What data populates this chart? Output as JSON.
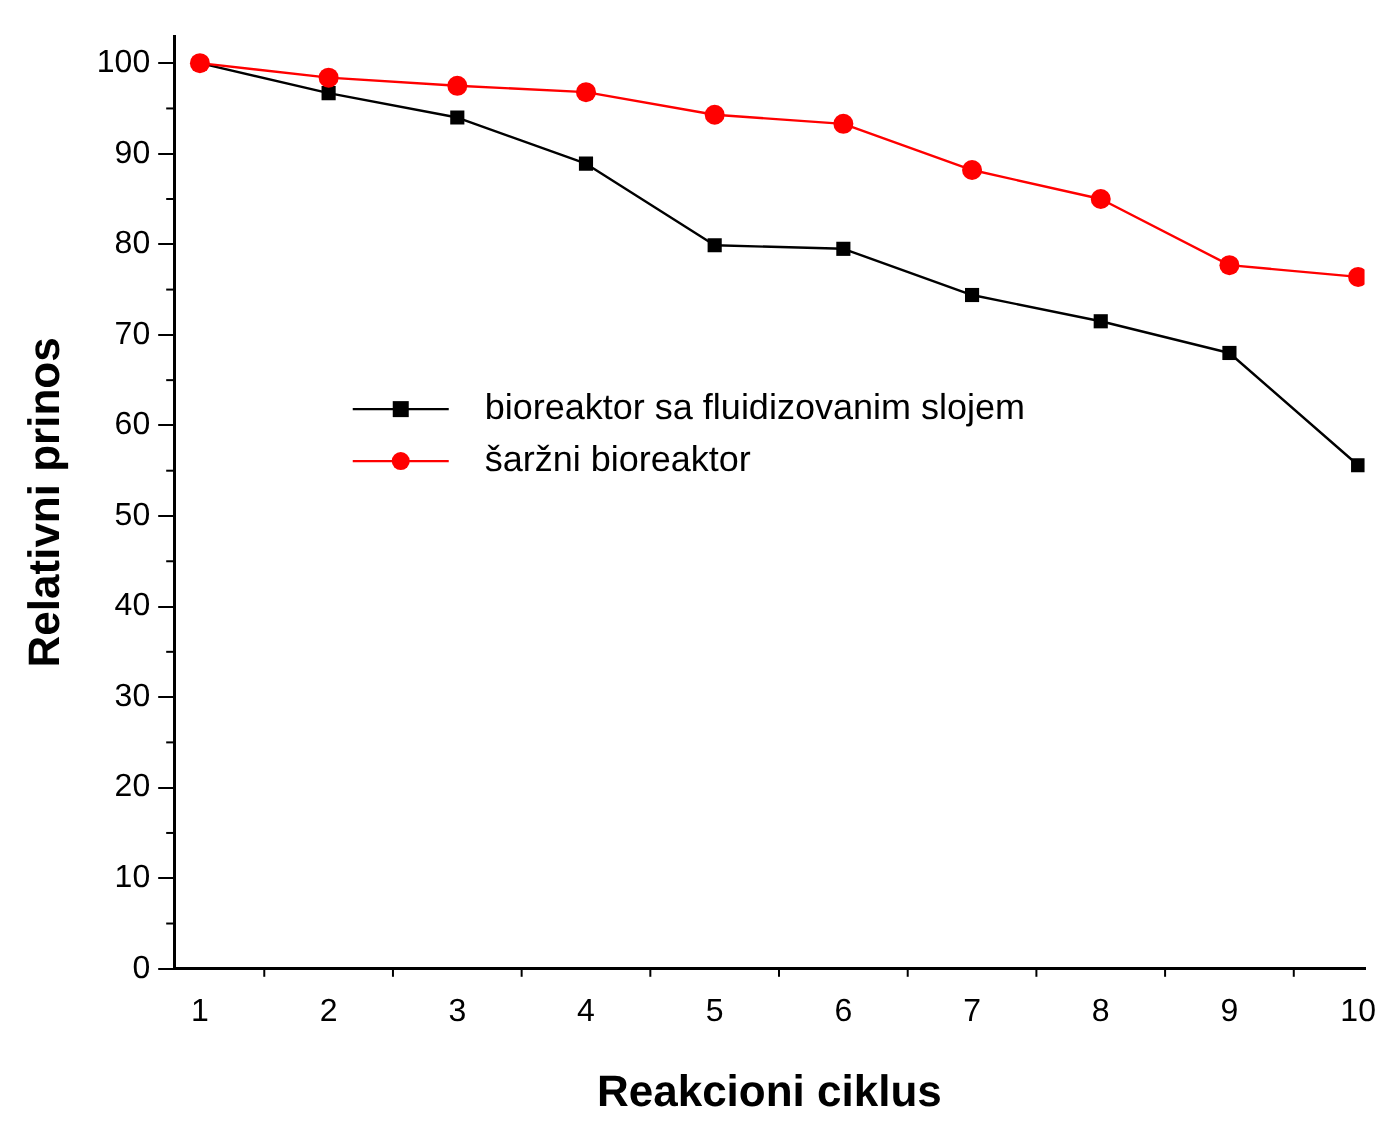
{
  "chart_data": {
    "type": "line",
    "xlabel": "Reakcioni ciklus",
    "ylabel": "Relativni prinos",
    "x": [
      1,
      2,
      3,
      4,
      5,
      6,
      7,
      8,
      9,
      10
    ],
    "xlim": [
      0.8,
      10.05
    ],
    "xticks": [
      1,
      2,
      3,
      4,
      5,
      6,
      7,
      8,
      9,
      10
    ],
    "ylim": [
      0,
      103
    ],
    "yticks": [
      0,
      10,
      20,
      30,
      40,
      50,
      60,
      70,
      80,
      90,
      100
    ],
    "series": [
      {
        "name": "bioreaktor sa fluidizovanim slojem",
        "color": "#000000",
        "marker": "square",
        "values": [
          100,
          96.7,
          94,
          88.9,
          79.9,
          79.5,
          74.4,
          71.5,
          68,
          55.6
        ]
      },
      {
        "name": "šaržni bioreaktor",
        "color": "#ff0000",
        "marker": "circle",
        "values": [
          100,
          98.4,
          97.5,
          96.8,
          94.3,
          93.3,
          88.2,
          85,
          77.7,
          76.4
        ]
      }
    ],
    "legend": "center left",
    "grid": false,
    "line_style": "solid"
  }
}
